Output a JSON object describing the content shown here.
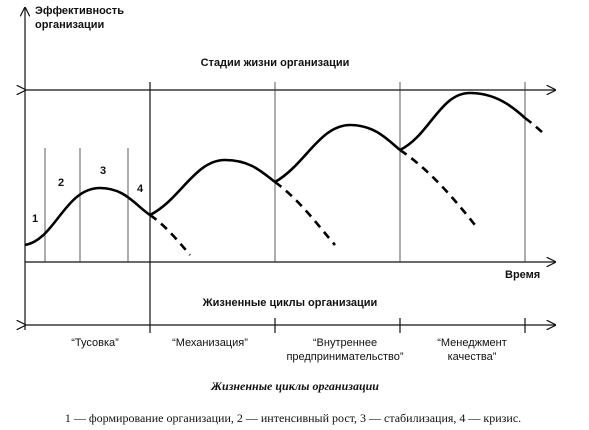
{
  "axis": {
    "y_label": [
      "Эффективность",
      "организации"
    ],
    "x_label": "Время"
  },
  "stages_title": "Стадии жизни организации",
  "phases": [
    "1",
    "2",
    "3",
    "4"
  ],
  "cycles_title": "Жизненные циклы организации",
  "cycles": [
    [
      "“Тусовка”"
    ],
    [
      "“Механизация”"
    ],
    [
      "“Внутреннее",
      "предпринимательство”"
    ],
    [
      "“Менеджмент",
      "качества”"
    ]
  ],
  "caption": "Жизненные циклы организации",
  "legend": "1 — формирование организации, 2 — интенсивный рост, 3 — стабилизация, 4 — кризис."
}
